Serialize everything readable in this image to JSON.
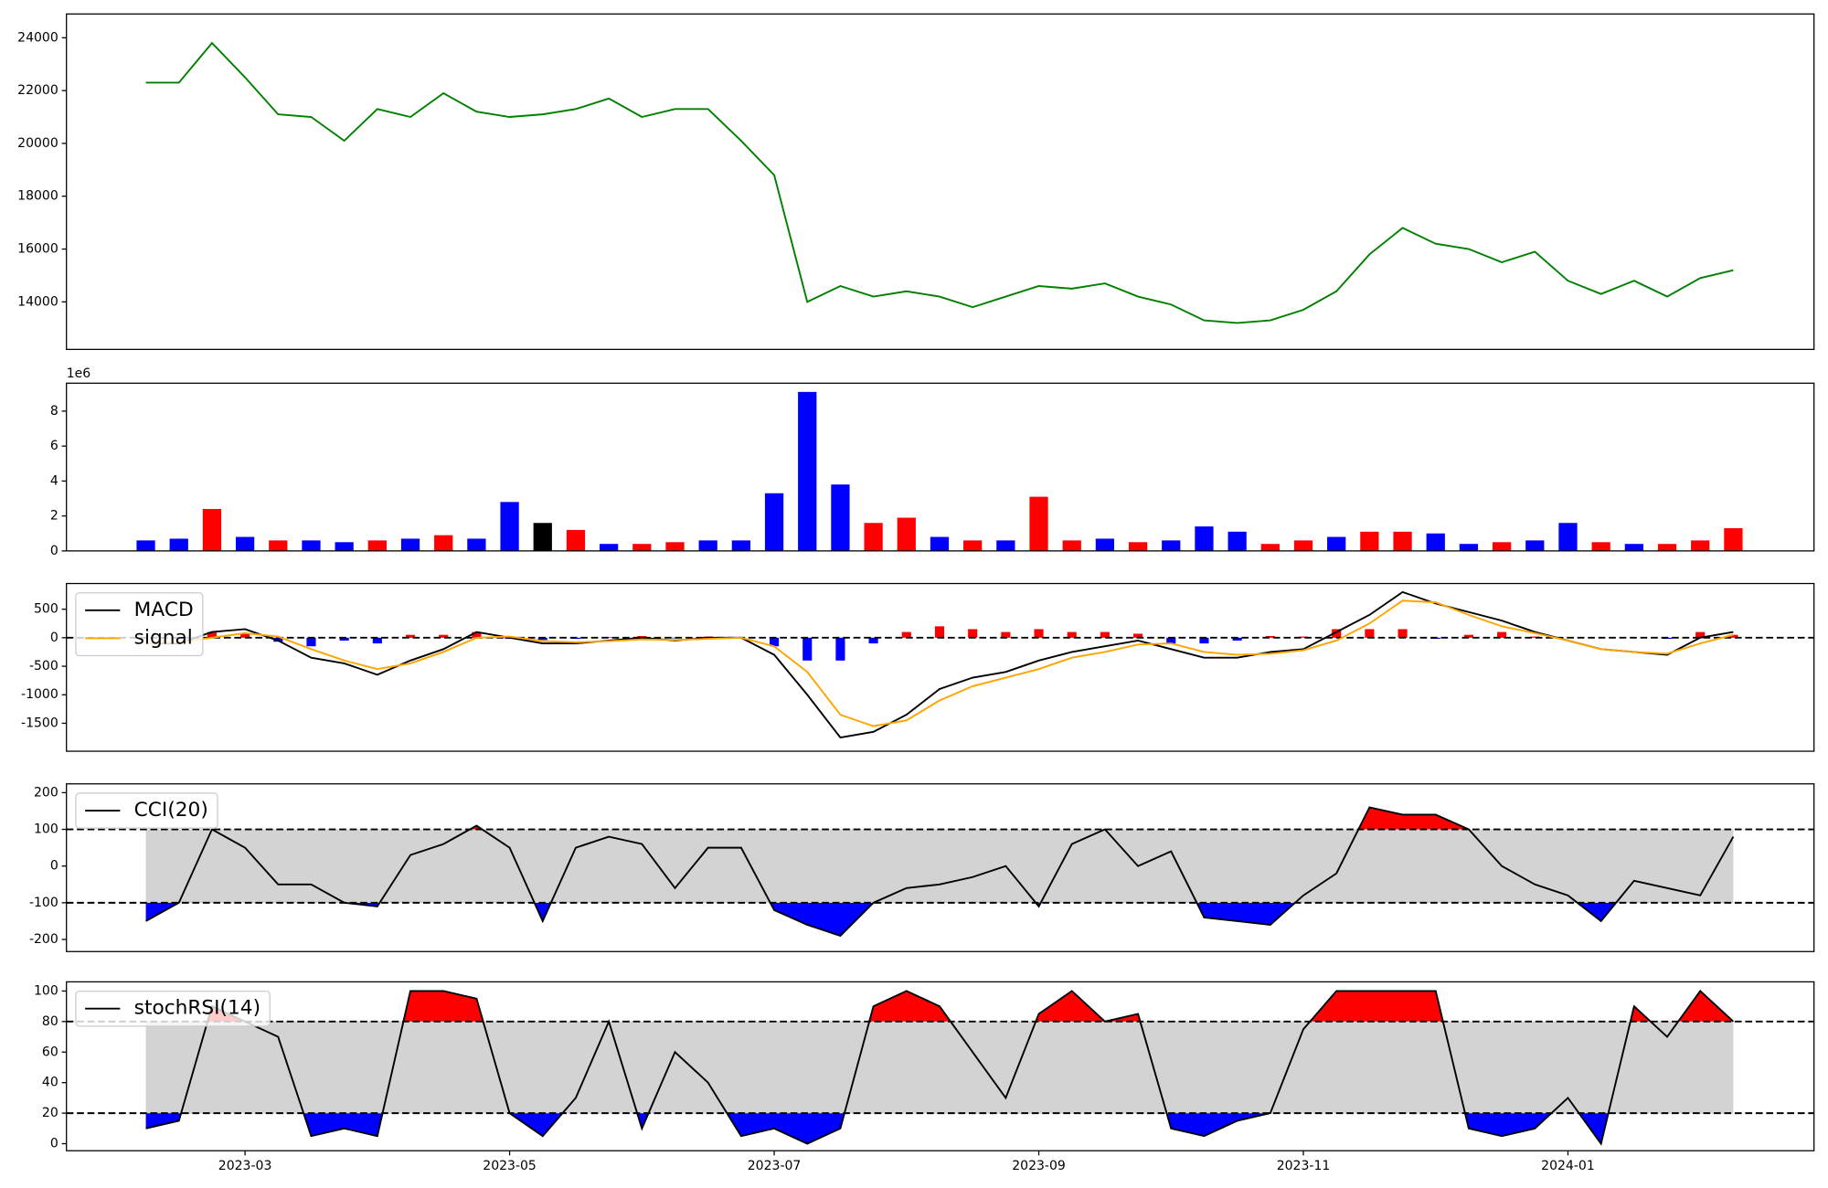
{
  "chart_data": [
    {
      "type": "line",
      "color": "green",
      "x": [
        1.25,
        1.5,
        1.75,
        2,
        2.25,
        2.5,
        2.75,
        3,
        3.25,
        3.5,
        3.75,
        4,
        4.25,
        4.5,
        4.75,
        5,
        5.25,
        5.5,
        5.75,
        6,
        6.25,
        6.5,
        6.75,
        7,
        7.25,
        7.5,
        7.75,
        8,
        8.25,
        8.5,
        8.75,
        9,
        9.25,
        9.5,
        9.75,
        10,
        10.25,
        10.5,
        10.75,
        11,
        11.25,
        11.5,
        11.75,
        12,
        12.25,
        12.5,
        12.75,
        13,
        13.25
      ],
      "values": [
        22300,
        22300,
        23800,
        22500,
        21100,
        21000,
        20100,
        21300,
        21000,
        21900,
        21200,
        21000,
        21100,
        21300,
        21700,
        21000,
        21300,
        21300,
        20100,
        18800,
        14000,
        14600,
        14200,
        14400,
        14200,
        13800,
        14200,
        14600,
        14500,
        14700,
        14200,
        13900,
        13300,
        13200,
        13300,
        13700,
        14400,
        15800,
        16800,
        16200,
        16000,
        15500,
        15900,
        14800,
        14300,
        14800,
        14200,
        14900,
        15200
      ],
      "xlim": [
        0.65,
        13.86
      ],
      "ylim": [
        12200,
        24900
      ],
      "yticks": [
        14000,
        16000,
        18000,
        20000,
        22000,
        24000
      ]
    },
    {
      "type": "bar",
      "offset_label": "1e6",
      "x": [
        1.25,
        1.5,
        1.75,
        2,
        2.25,
        2.5,
        2.75,
        3,
        3.25,
        3.5,
        3.75,
        4,
        4.25,
        4.5,
        4.75,
        5,
        5.25,
        5.5,
        5.75,
        6,
        6.25,
        6.5,
        6.75,
        7,
        7.25,
        7.5,
        7.75,
        8,
        8.25,
        8.5,
        8.75,
        9,
        9.25,
        9.5,
        9.75,
        10,
        10.25,
        10.5,
        10.75,
        11,
        11.25,
        11.5,
        11.75,
        12,
        12.25,
        12.5,
        12.75,
        13,
        13.25
      ],
      "values": [
        0.6,
        0.7,
        2.4,
        0.8,
        0.6,
        0.6,
        0.5,
        0.6,
        0.7,
        0.9,
        0.7,
        2.8,
        1.6,
        1.2,
        0.4,
        0.4,
        0.5,
        0.6,
        0.6,
        3.3,
        9.1,
        3.8,
        1.6,
        1.9,
        0.8,
        0.6,
        0.6,
        3.1,
        0.6,
        0.7,
        0.5,
        0.6,
        1.4,
        1.1,
        0.4,
        0.6,
        0.8,
        1.1,
        1.1,
        1.0,
        0.4,
        0.5,
        0.6,
        1.6,
        0.5,
        0.4,
        0.4,
        0.6,
        1.3
      ],
      "colors": [
        "blue",
        "blue",
        "red",
        "blue",
        "red",
        "blue",
        "blue",
        "red",
        "blue",
        "red",
        "blue",
        "blue",
        "black",
        "red",
        "blue",
        "red",
        "red",
        "blue",
        "blue",
        "blue",
        "blue",
        "blue",
        "red",
        "red",
        "blue",
        "red",
        "blue",
        "red",
        "red",
        "blue",
        "red",
        "blue",
        "blue",
        "blue",
        "red",
        "red",
        "blue",
        "red",
        "red",
        "blue",
        "blue",
        "red",
        "blue",
        "blue",
        "red",
        "blue",
        "red",
        "red",
        "red"
      ],
      "xlim": [
        0.65,
        13.86
      ],
      "ylim": [
        0,
        9.6
      ],
      "yticks": [
        0,
        2,
        4,
        6,
        8
      ]
    },
    {
      "type": "line",
      "legend": "upper left",
      "x": [
        1.25,
        1.5,
        1.75,
        2,
        2.25,
        2.5,
        2.75,
        3,
        3.25,
        3.5,
        3.75,
        4,
        4.25,
        4.5,
        4.75,
        5,
        5.25,
        5.5,
        5.75,
        6,
        6.25,
        6.5,
        6.75,
        7,
        7.25,
        7.5,
        7.75,
        8,
        8.25,
        8.5,
        8.75,
        9,
        9.25,
        9.5,
        9.75,
        10,
        10.25,
        10.5,
        10.75,
        11,
        11.25,
        11.5,
        11.75,
        12,
        12.25,
        12.5,
        12.75,
        13,
        13.25
      ],
      "series": [
        {
          "name": "MACD",
          "color": "black",
          "values": [
            -100,
            -100,
            100,
            150,
            -50,
            -350,
            -450,
            -650,
            -400,
            -200,
            100,
            0,
            -100,
            -100,
            -50,
            0,
            -50,
            0,
            0,
            -300,
            -1000,
            -1750,
            -1650,
            -1350,
            -900,
            -700,
            -600,
            -400,
            -250,
            -150,
            -50,
            -200,
            -350,
            -350,
            -250,
            -200,
            100,
            400,
            800,
            600,
            450,
            300,
            100,
            -50,
            -200,
            -250,
            -300,
            0,
            100
          ]
        },
        {
          "name": "signal",
          "color": "orange",
          "values": [
            -100,
            -80,
            0,
            80,
            20,
            -200,
            -400,
            -550,
            -450,
            -250,
            0,
            20,
            -60,
            -80,
            -60,
            -30,
            -40,
            -20,
            0,
            -150,
            -600,
            -1350,
            -1550,
            -1450,
            -1100,
            -850,
            -700,
            -550,
            -350,
            -250,
            -120,
            -100,
            -250,
            -300,
            -280,
            -220,
            -50,
            250,
            650,
            620,
            400,
            200,
            80,
            -50,
            -200,
            -250,
            -280,
            -100,
            50
          ]
        }
      ],
      "histogram": {
        "colors": [
          "red",
          "blue"
        ],
        "values": [
          0,
          -20,
          100,
          70,
          -70,
          -150,
          -50,
          -100,
          50,
          50,
          100,
          -20,
          -40,
          -20,
          10,
          30,
          -10,
          20,
          0,
          -150,
          -400,
          -400,
          -100,
          100,
          200,
          150,
          100,
          150,
          100,
          100,
          70,
          -100,
          -100,
          -50,
          30,
          20,
          150,
          150,
          150,
          -20,
          50,
          100,
          20,
          0,
          0,
          0,
          -20,
          100,
          50
        ]
      },
      "hlines": [
        0
      ],
      "xlim": [
        0.65,
        13.86
      ],
      "ylim": [
        -1990,
        950
      ],
      "yticks": [
        -1500,
        -1000,
        -500,
        0,
        500
      ]
    },
    {
      "type": "band",
      "legend": "upper left",
      "x": [
        1.25,
        1.5,
        1.75,
        2,
        2.25,
        2.5,
        2.75,
        3,
        3.25,
        3.5,
        3.75,
        4,
        4.25,
        4.5,
        4.75,
        5,
        5.25,
        5.5,
        5.75,
        6,
        6.25,
        6.5,
        6.75,
        7,
        7.25,
        7.5,
        7.75,
        8,
        8.25,
        8.5,
        8.75,
        9,
        9.25,
        9.5,
        9.75,
        10,
        10.25,
        10.5,
        10.75,
        11,
        11.25,
        11.5,
        11.75,
        12,
        12.25,
        12.5,
        12.75,
        13,
        13.25
      ],
      "series": [
        {
          "name": "CCI(20)",
          "color": "black",
          "values": [
            -150,
            -100,
            100,
            50,
            -50,
            -50,
            -100,
            -110,
            30,
            60,
            110,
            50,
            -150,
            50,
            80,
            60,
            -60,
            50,
            50,
            -120,
            -160,
            -190,
            -100,
            -60,
            -50,
            -30,
            0,
            -110,
            60,
            100,
            0,
            40,
            -140,
            -150,
            -160,
            -80,
            -20,
            160,
            140,
            140,
            100,
            0,
            -50,
            -80,
            -150,
            -40,
            -60,
            -80,
            80
          ]
        }
      ],
      "hlines": [
        100,
        -100
      ],
      "above_color": "red",
      "below_color": "blue",
      "band_color": "lightgray",
      "xlim": [
        0.65,
        13.86
      ],
      "ylim": [
        -233,
        224
      ],
      "yticks": [
        -200,
        -100,
        0,
        100,
        200
      ]
    },
    {
      "type": "band",
      "legend": "upper left",
      "x": [
        1.25,
        1.5,
        1.75,
        2,
        2.25,
        2.5,
        2.75,
        3,
        3.25,
        3.5,
        3.75,
        4,
        4.25,
        4.5,
        4.75,
        5,
        5.25,
        5.5,
        5.75,
        6,
        6.25,
        6.5,
        6.75,
        7,
        7.25,
        7.5,
        7.75,
        8,
        8.25,
        8.5,
        8.75,
        9,
        9.25,
        9.5,
        9.75,
        10,
        10.25,
        10.5,
        10.75,
        11,
        11.25,
        11.5,
        11.75,
        12,
        12.25,
        12.5,
        12.75,
        13,
        13.25
      ],
      "series": [
        {
          "name": "stochRSI(14)",
          "color": "black",
          "values": [
            10,
            15,
            90,
            80,
            70,
            5,
            10,
            5,
            100,
            100,
            95,
            20,
            5,
            30,
            80,
            10,
            60,
            40,
            5,
            10,
            0,
            10,
            90,
            100,
            90,
            60,
            30,
            85,
            100,
            80,
            85,
            10,
            5,
            15,
            20,
            75,
            100,
            100,
            100,
            100,
            10,
            5,
            10,
            30,
            0,
            90,
            70,
            100,
            80
          ]
        }
      ],
      "hlines": [
        80,
        20
      ],
      "above_color": "red",
      "below_color": "blue",
      "band_color": "lightgray",
      "xlim": [
        0.65,
        13.86
      ],
      "ylim": [
        -4.6,
        106
      ],
      "yticks": [
        0,
        20,
        40,
        60,
        80,
        100
      ],
      "xticks": [
        {
          "value": 2,
          "label": "2023-03"
        },
        {
          "value": 4,
          "label": "2023-05"
        },
        {
          "value": 6,
          "label": "2023-07"
        },
        {
          "value": 8,
          "label": "2023-09"
        },
        {
          "value": 10,
          "label": "2023-11"
        },
        {
          "value": 12,
          "label": "2024-01"
        }
      ]
    }
  ]
}
